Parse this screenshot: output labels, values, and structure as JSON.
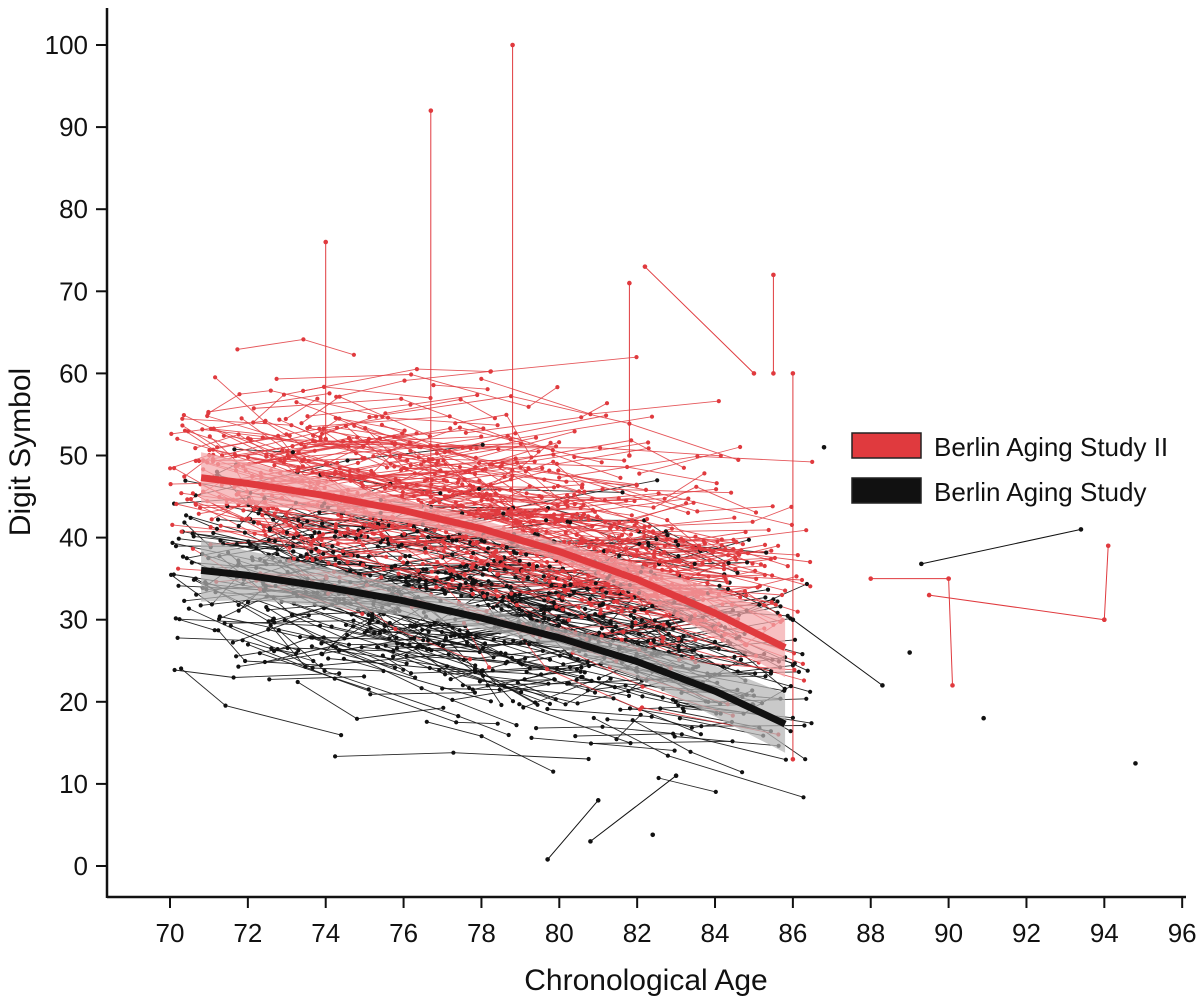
{
  "chart_data": {
    "type": "scatter",
    "title": "",
    "xlabel": "Chronological Age",
    "ylabel": "Digit Symbol",
    "xlim": [
      69,
      96
    ],
    "ylim": [
      -4,
      105
    ],
    "xticks": [
      70,
      72,
      74,
      76,
      78,
      80,
      82,
      84,
      86,
      88,
      90,
      92,
      94,
      96
    ],
    "yticks": [
      0,
      10,
      20,
      30,
      40,
      50,
      60,
      70,
      80,
      90,
      100
    ],
    "legend_position": "right",
    "series": [
      {
        "name": "Berlin Aging Study II",
        "color": "#e03a3e",
        "band_color": "#f4a8ab",
        "trend": {
          "x": [
            70.8,
            72,
            74,
            76,
            78,
            80,
            82,
            84,
            85.8
          ],
          "y": [
            47.3,
            46.6,
            45.1,
            43.3,
            41.1,
            38.3,
            34.9,
            30.8,
            26.6
          ],
          "lower": [
            44.2,
            44.0,
            43.2,
            41.9,
            40.0,
            37.2,
            33.0,
            27.8,
            23.0
          ],
          "upper": [
            50.4,
            49.2,
            47.0,
            44.7,
            42.2,
            39.4,
            36.8,
            33.8,
            30.2
          ]
        },
        "highlight_trajectories": [
          {
            "x": [
              78.8,
              78.8
            ],
            "y": [
              100,
              40
            ]
          },
          {
            "x": [
              76.7,
              76.7
            ],
            "y": [
              92,
              45
            ]
          },
          {
            "x": [
              74.0,
              74.0
            ],
            "y": [
              76,
              52
            ]
          },
          {
            "x": [
              82.2,
              85.0
            ],
            "y": [
              73,
              60
            ]
          },
          {
            "x": [
              85.5,
              85.5
            ],
            "y": [
              72,
              60
            ]
          },
          {
            "x": [
              88.0,
              90.0
            ],
            "y": [
              35,
              35
            ]
          },
          {
            "x": [
              90.0,
              90.1
            ],
            "y": [
              35,
              22
            ]
          },
          {
            "x": [
              89.5,
              94.0
            ],
            "y": [
              33,
              30
            ]
          },
          {
            "x": [
              94.0,
              94.1
            ],
            "y": [
              30,
              39
            ]
          },
          {
            "x": [
              86.0,
              86.0
            ],
            "y": [
              60,
              13
            ]
          },
          {
            "x": [
              81.8,
              81.8
            ],
            "y": [
              71,
              50
            ]
          }
        ]
      },
      {
        "name": "Berlin Aging Study",
        "color": "#111111",
        "band_color": "#b4b4b4",
        "trend": {
          "x": [
            70.8,
            72,
            74,
            76,
            78,
            80,
            82,
            84,
            85.8
          ],
          "y": [
            36.0,
            35.4,
            34.0,
            32.3,
            30.2,
            27.8,
            24.9,
            21.3,
            17.3
          ],
          "lower": [
            32.2,
            32.4,
            31.6,
            30.5,
            28.9,
            26.6,
            22.9,
            18.2,
            13.8
          ],
          "upper": [
            39.8,
            38.4,
            36.4,
            34.1,
            31.5,
            29.0,
            26.9,
            24.4,
            21.0
          ]
        },
        "highlight_trajectories": [
          {
            "x": [
              89.3,
              93.4
            ],
            "y": [
              36.8,
              41
            ]
          },
          {
            "x": [
              79.7,
              81.0
            ],
            "y": [
              0.8,
              8
            ]
          },
          {
            "x": [
              80.8,
              83.0
            ],
            "y": [
              3,
              11
            ]
          },
          {
            "x": [
              86.0,
              88.3
            ],
            "y": [
              30,
              22
            ]
          }
        ],
        "isolated_points": [
          {
            "x": 86.8,
            "y": 51
          },
          {
            "x": 89.0,
            "y": 26
          },
          {
            "x": 90.9,
            "y": 18
          },
          {
            "x": 94.8,
            "y": 12.5
          },
          {
            "x": 82.4,
            "y": 3.8
          }
        ]
      }
    ]
  }
}
